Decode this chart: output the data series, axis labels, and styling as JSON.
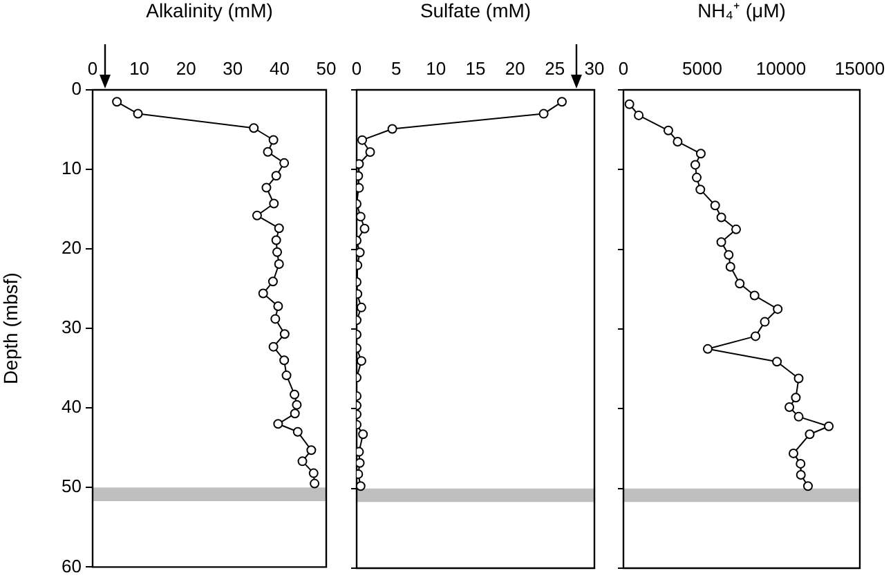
{
  "chart_data": [
    {
      "type": "line",
      "xlabel": "Alkalinity (mM)",
      "ylabel": "Depth (mbsf)",
      "color": "#000000",
      "marker": "circle",
      "x": [
        5.2,
        9.7,
        34.5,
        38.7,
        37.5,
        41.0,
        39.3,
        37.2,
        38.8,
        35.2,
        39.9,
        39.3,
        39.5,
        39.9,
        38.6,
        36.5,
        39.7,
        39.1,
        41.1,
        38.7,
        41.0,
        41.5,
        43.2,
        43.7,
        43.3,
        39.7,
        43.9,
        46.8,
        44.9,
        47.3,
        47.5
      ],
      "values": [
        1.5,
        3.0,
        4.8,
        6.3,
        7.8,
        9.2,
        10.8,
        12.3,
        14.3,
        15.8,
        17.4,
        18.9,
        20.4,
        21.9,
        24.1,
        25.6,
        27.2,
        28.8,
        30.7,
        32.3,
        34.0,
        35.9,
        38.3,
        39.6,
        40.7,
        42.0,
        43.0,
        45.3,
        46.7,
        48.2,
        49.5
      ],
      "xlim": [
        0,
        50
      ],
      "xticks": [
        0,
        10,
        20,
        30,
        40,
        50
      ],
      "ylim": [
        60,
        0
      ],
      "yticks": [
        0,
        10,
        20,
        30,
        40,
        50,
        60
      ],
      "bands": [
        {
          "axis": "y",
          "from": 50,
          "to": 51.7,
          "color": "#bfbfbf"
        }
      ]
    },
    {
      "type": "line",
      "xlabel": "Sulfate (mM)",
      "color": "#000000",
      "marker": "circle",
      "tick_labels": "x",
      "x": [
        25.9,
        23.6,
        4.5,
        0.7,
        1.7,
        0.3,
        0.2,
        0.3,
        0,
        0.5,
        1.0,
        0,
        0.4,
        0.1,
        0,
        0.1,
        0.6,
        0,
        0,
        0,
        0.6,
        0,
        0,
        0,
        0,
        0,
        0.8,
        0.3,
        0.4,
        0.2,
        0.5
      ],
      "values": [
        1.5,
        3.0,
        4.9,
        6.3,
        7.8,
        9.3,
        10.8,
        12.3,
        14.3,
        15.9,
        17.4,
        18.9,
        20.4,
        22.0,
        24.1,
        25.6,
        27.3,
        28.9,
        30.7,
        32.4,
        34.0,
        36.1,
        38.4,
        39.6,
        40.7,
        42.0,
        43.2,
        45.4,
        46.8,
        48.2,
        49.7
      ],
      "xlim": [
        0,
        30
      ],
      "xticks": [
        0,
        5,
        10,
        15,
        20,
        25,
        30
      ],
      "ylim": [
        60,
        0
      ],
      "yticks": [
        0,
        10,
        20,
        30,
        40,
        50,
        60
      ],
      "bands": [
        {
          "axis": "y",
          "from": 50,
          "to": 51.7,
          "color": "#bfbfbf"
        }
      ]
    },
    {
      "type": "line",
      "xlabel": "NH₄⁺ (μM)",
      "color": "#000000",
      "marker": "circle",
      "tick_labels": "x",
      "x": [
        380,
        970,
        2850,
        3440,
        4910,
        4560,
        4650,
        4880,
        5820,
        6210,
        7150,
        6210,
        6680,
        6790,
        7380,
        8320,
        9790,
        8970,
        8380,
        5350,
        9740,
        11120,
        10940,
        10530,
        11120,
        13030,
        11820,
        10790,
        11240,
        11260,
        11710
      ],
      "values": [
        1.8,
        3.2,
        5.1,
        6.5,
        8.0,
        9.4,
        11.0,
        12.5,
        14.5,
        16.0,
        17.5,
        19.1,
        20.7,
        22.2,
        24.3,
        25.8,
        27.5,
        29.1,
        30.9,
        32.5,
        34.1,
        36.2,
        38.6,
        39.8,
        41.0,
        42.2,
        43.2,
        45.6,
        46.9,
        48.3,
        49.7
      ],
      "xlim": [
        0,
        15000
      ],
      "xticks": [
        0,
        5000,
        10000,
        15000
      ],
      "ylim": [
        60,
        0
      ],
      "yticks": [
        0,
        10,
        20,
        30,
        40,
        50,
        60
      ],
      "bands": [
        {
          "axis": "y",
          "from": 50,
          "to": 51.7,
          "color": "#bfbfbf"
        }
      ]
    }
  ]
}
